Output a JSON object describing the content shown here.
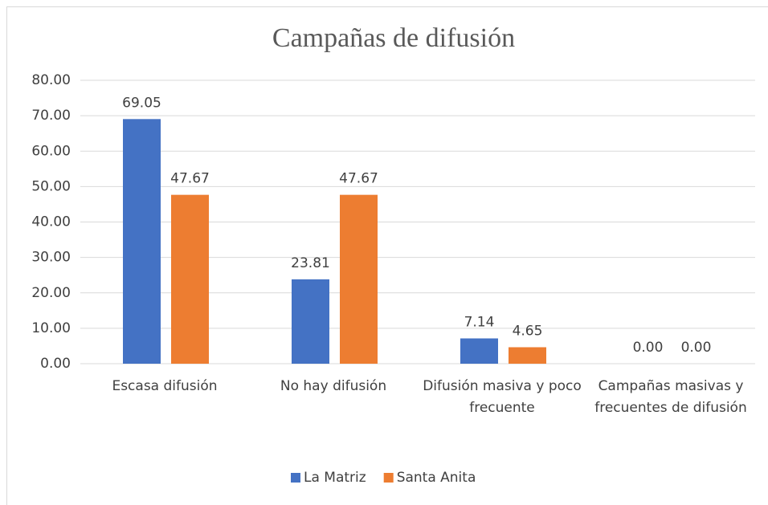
{
  "chart_data": {
    "type": "bar",
    "title": "Campañas de difusión",
    "categories": [
      "Escasa difusión",
      "No hay difusión",
      "Difusión masiva y poco frecuente",
      "Campañas masivas y frecuentes de difusión"
    ],
    "series": [
      {
        "name": "La Matriz",
        "color": "#4472c4",
        "values": [
          69.05,
          23.81,
          7.14,
          0
        ],
        "value_labels": [
          "69.05",
          "23.81",
          "7.14",
          "0.00"
        ]
      },
      {
        "name": "Santa Anita",
        "color": "#ed7d31",
        "values": [
          47.67,
          47.67,
          4.65,
          0
        ],
        "value_labels": [
          "47.67",
          "47.67",
          "4.65",
          "0.00"
        ]
      }
    ],
    "ylim": [
      0,
      80
    ],
    "yticks": [
      {
        "value": 0,
        "label": "0.00"
      },
      {
        "value": 10,
        "label": "10.00"
      },
      {
        "value": 20,
        "label": "20.00"
      },
      {
        "value": 30,
        "label": "30.00"
      },
      {
        "value": 40,
        "label": "40.00"
      },
      {
        "value": 50,
        "label": "50.00"
      },
      {
        "value": 60,
        "label": "60.00"
      },
      {
        "value": 70,
        "label": "70.00"
      },
      {
        "value": 80,
        "label": "80.00"
      }
    ],
    "grid": true,
    "legend": "bottom"
  }
}
